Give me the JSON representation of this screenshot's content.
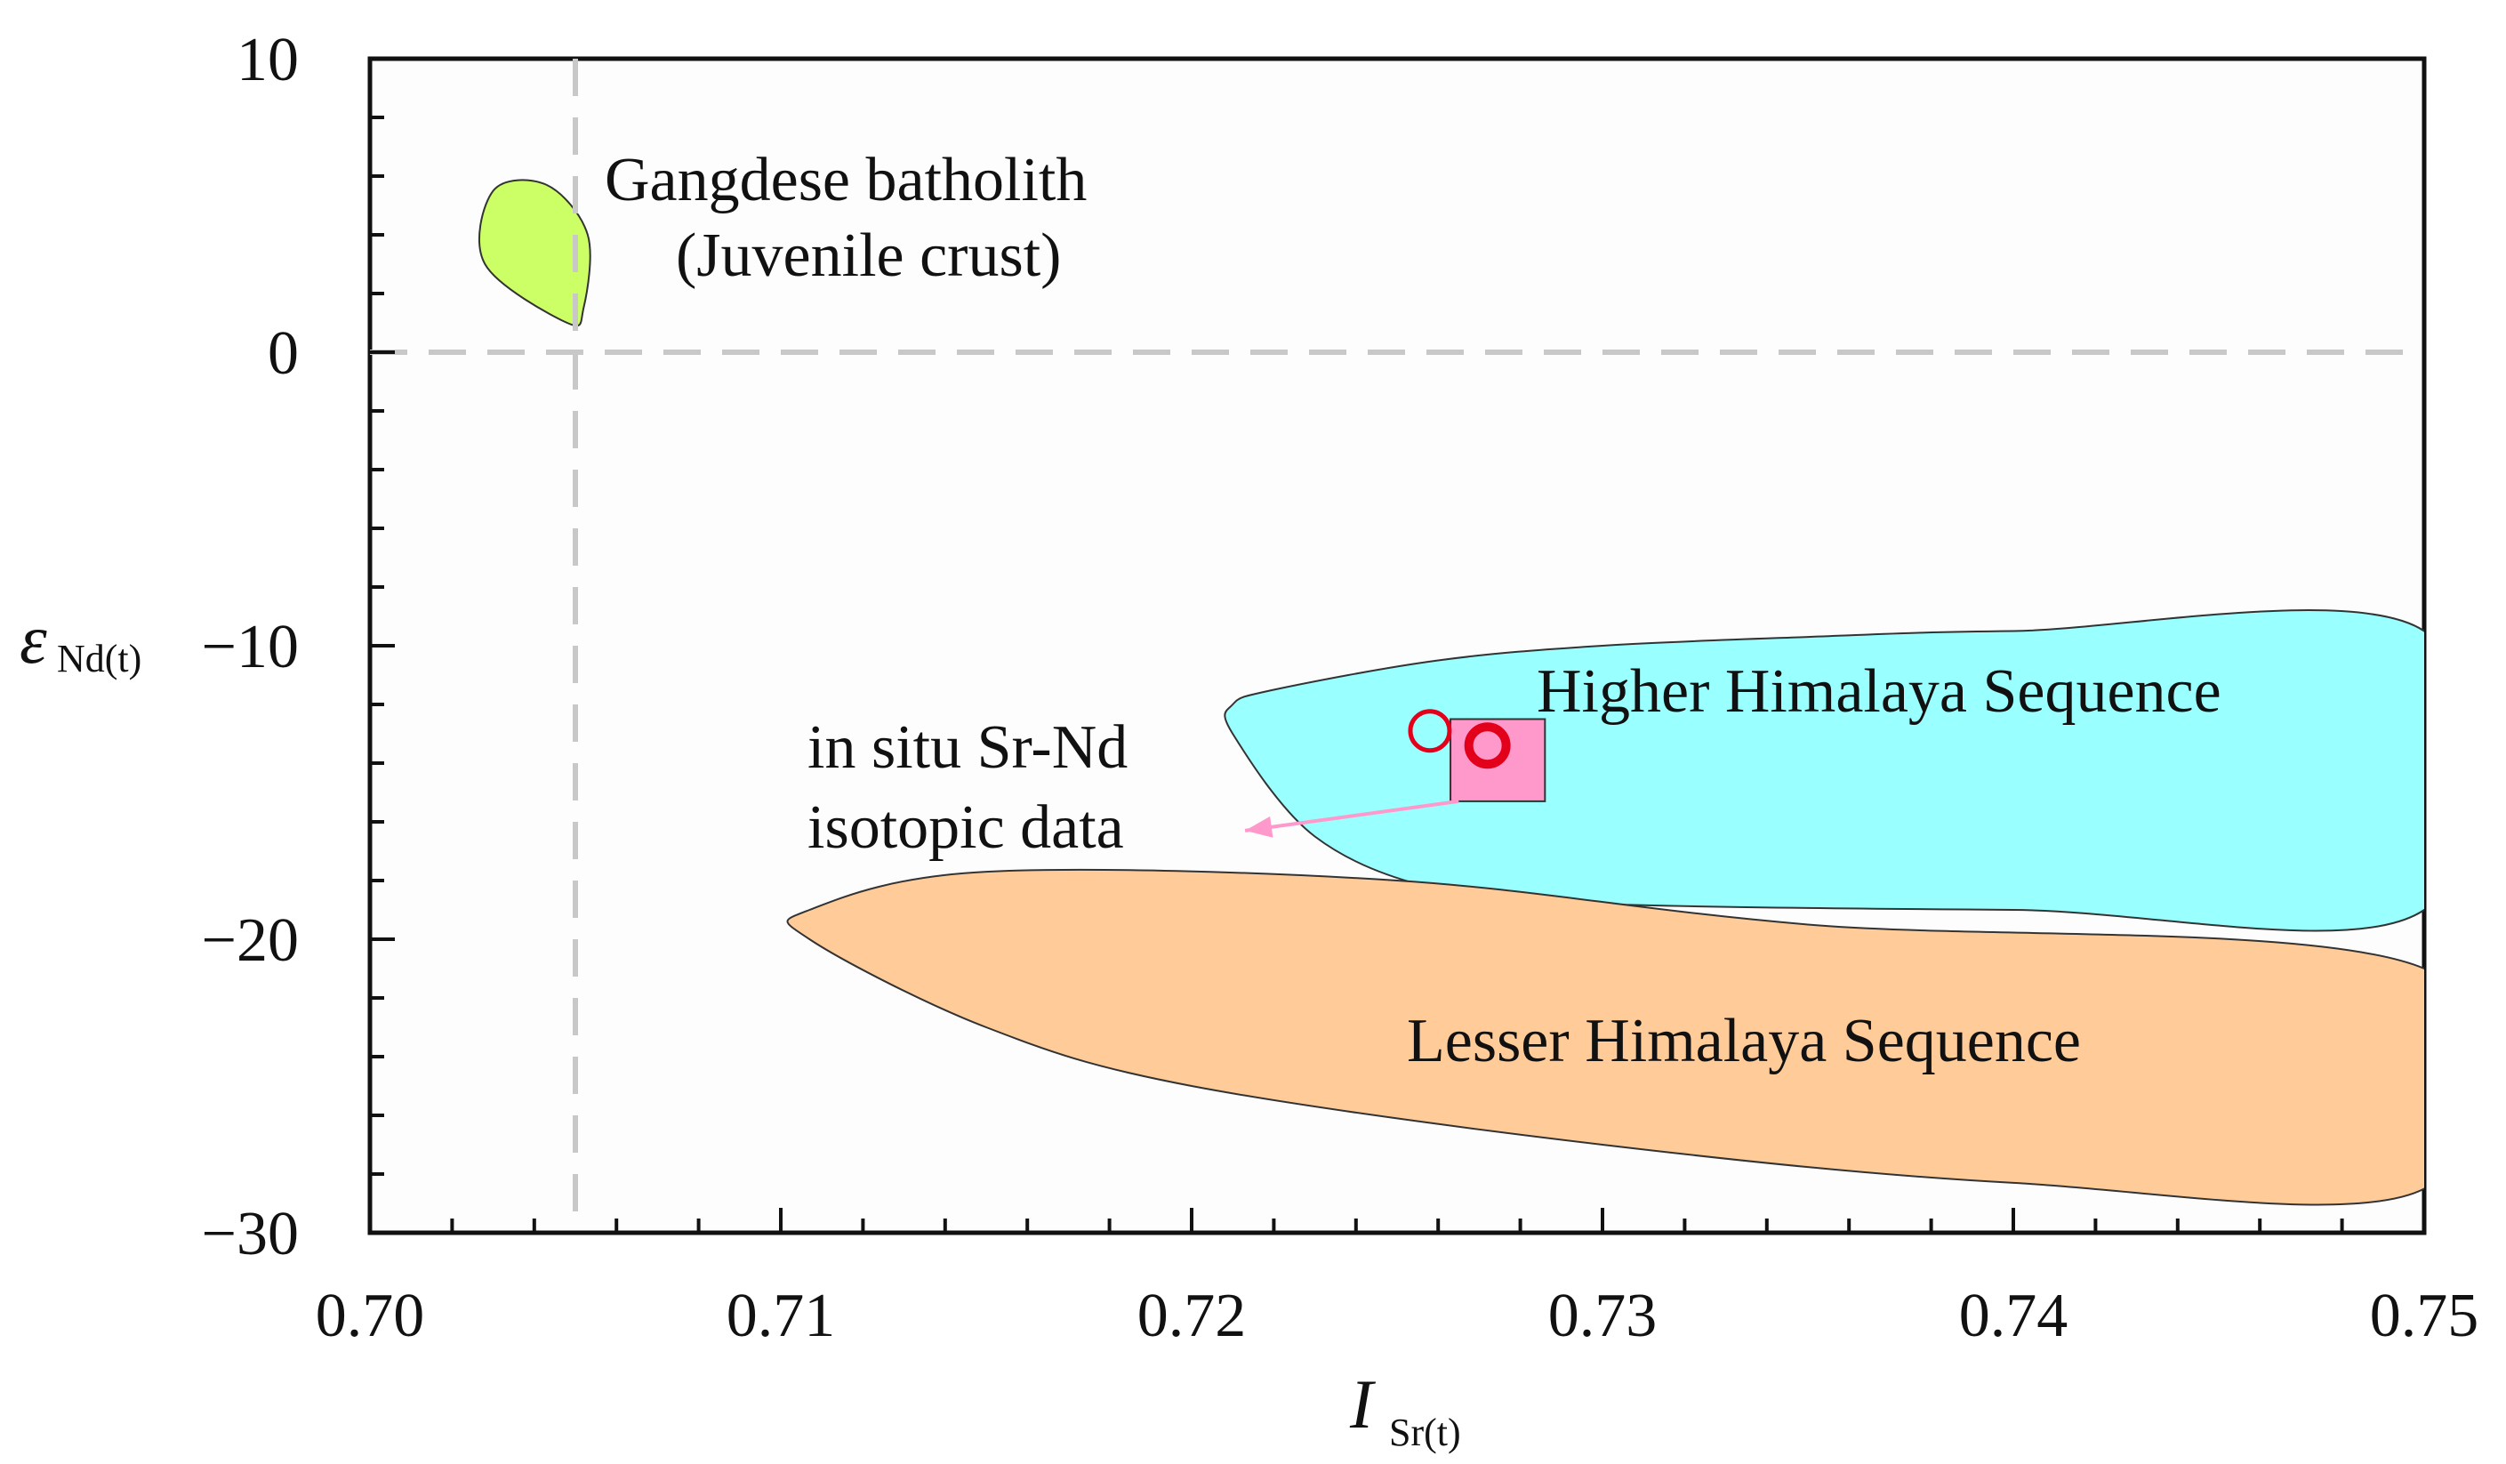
{
  "chart_data": {
    "type": "scatter",
    "xlabel": "I",
    "xlabel_sub": "Sr(t)",
    "ylabel": "ε",
    "ylabel_sub": "Nd(t)",
    "xlim": [
      0.7,
      0.75
    ],
    "ylim": [
      -30,
      10
    ],
    "x_ticks": [
      0.7,
      0.71,
      0.72,
      0.73,
      0.74,
      0.75
    ],
    "x_tick_labels": [
      "0.70",
      "0.71",
      "0.72",
      "0.73",
      "0.74",
      "0.75"
    ],
    "y_ticks": [
      10,
      0,
      -10,
      -20,
      -30
    ],
    "y_tick_labels": [
      "10",
      "0",
      "−10",
      "−20",
      "−30"
    ],
    "x_minor_step": 0.002,
    "y_minor_step": 2,
    "reference_lines": [
      {
        "axis": "x",
        "value": 0.705,
        "style": "dashed"
      },
      {
        "axis": "y",
        "value": 0,
        "style": "dashed"
      }
    ],
    "regions": [
      {
        "name": "Gangdese batholith",
        "label": "Gangdese batholith",
        "label_line2": "(Juvenile crust)",
        "color": "#ccff66",
        "outline": [
          [
            0.7048,
            1.0
          ],
          [
            0.7028,
            3.0
          ],
          [
            0.703,
            5.5
          ],
          [
            0.7043,
            5.7
          ],
          [
            0.7053,
            4.0
          ],
          [
            0.7052,
            1.5
          ]
        ]
      },
      {
        "name": "Higher Himalaya Sequence",
        "label": "Higher Himalaya Sequence",
        "color": "#99ffff",
        "outline": [
          [
            0.721,
            -12.0
          ],
          [
            0.722,
            -11.5
          ],
          [
            0.726,
            -10.5
          ],
          [
            0.73,
            -10.0
          ],
          [
            0.735,
            -9.7
          ],
          [
            0.74,
            -9.5
          ],
          [
            0.75,
            -9.5
          ],
          [
            0.75,
            -19.0
          ],
          [
            0.74,
            -19.0
          ],
          [
            0.73,
            -18.8
          ],
          [
            0.726,
            -18.3
          ],
          [
            0.723,
            -16.5
          ],
          [
            0.721,
            -13.0
          ]
        ]
      },
      {
        "name": "Lesser Himalaya Sequence",
        "label": "Lesser Himalaya Sequence",
        "color": "#ffcc99",
        "outline": [
          [
            0.7107,
            -19.0
          ],
          [
            0.715,
            -17.7
          ],
          [
            0.725,
            -18.0
          ],
          [
            0.735,
            -19.5
          ],
          [
            0.75,
            -21.0
          ],
          [
            0.75,
            -28.5
          ],
          [
            0.74,
            -28.3
          ],
          [
            0.73,
            -27.0
          ],
          [
            0.72,
            -25.0
          ],
          [
            0.715,
            -23.0
          ],
          [
            0.7107,
            -20.0
          ]
        ]
      }
    ],
    "data_box": {
      "x": [
        0.7263,
        0.7286
      ],
      "y": [
        -12.5,
        -15.3
      ],
      "color": "#ff99cc"
    },
    "points": [
      {
        "x": 0.7258,
        "y": -12.9,
        "style": "open-circle",
        "color": "#e3001b"
      },
      {
        "x": 0.7272,
        "y": -13.4,
        "style": "open-circle-bold",
        "color": "#e3001b"
      }
    ],
    "annotation": {
      "lines": [
        "in situ Sr-Nd",
        "isotopic data"
      ],
      "arrow_from": [
        0.7265,
        -15.3
      ],
      "arrow_to": [
        0.7213,
        -16.3
      ],
      "color": "#ff99cc"
    }
  }
}
